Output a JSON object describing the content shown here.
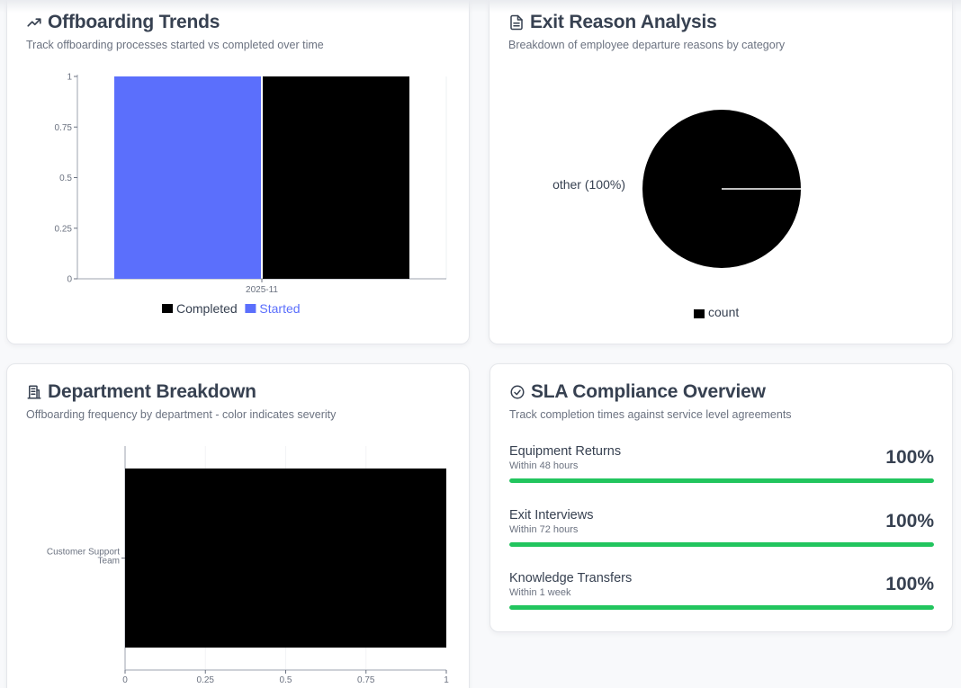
{
  "cards": {
    "trends": {
      "title": "Offboarding Trends",
      "subtitle": "Track offboarding processes started vs completed over time",
      "icon": "trending-up-icon"
    },
    "exit": {
      "title": "Exit Reason Analysis",
      "subtitle": "Breakdown of employee departure reasons by category",
      "icon": "document-icon"
    },
    "dept": {
      "title": "Department Breakdown",
      "subtitle": "Offboarding frequency by department - color indicates severity",
      "icon": "building-icon"
    },
    "sla": {
      "title": "SLA Compliance Overview",
      "subtitle": "Track completion times against service level agreements",
      "icon": "check-circle-icon",
      "items": [
        {
          "name": "Equipment Returns",
          "target": "Within 48 hours",
          "percent_label": "100%",
          "percent": 100
        },
        {
          "name": "Exit Interviews",
          "target": "Within 72 hours",
          "percent_label": "100%",
          "percent": 100
        },
        {
          "name": "Knowledge Transfers",
          "target": "Within 1 week",
          "percent_label": "100%",
          "percent": 100
        }
      ]
    }
  },
  "chart_data": [
    {
      "type": "bar",
      "categories": [
        "2025-11"
      ],
      "series": [
        {
          "name": "Started",
          "values": [
            1
          ],
          "color": "#5b6ffc"
        },
        {
          "name": "Completed",
          "values": [
            1
          ],
          "color": "#000000"
        }
      ],
      "legend_order": [
        "Completed",
        "Started"
      ],
      "ylim": [
        0,
        1
      ],
      "yticks": [
        "0",
        "0.25",
        "0.5",
        "0.75",
        "1"
      ],
      "legend_position": "bottom"
    },
    {
      "type": "pie",
      "slices": [
        {
          "label": "other (100%)",
          "value": 100,
          "color": "#000000"
        }
      ],
      "legend": [
        "count"
      ],
      "legend_position": "bottom"
    },
    {
      "type": "bar",
      "orientation": "horizontal",
      "categories": [
        "Customer Support Team"
      ],
      "category_label_lines": [
        "Customer Support",
        "Team"
      ],
      "values": [
        1
      ],
      "color": "#000000",
      "xlim": [
        0,
        1
      ],
      "xticks": [
        "0",
        "0.25",
        "0.5",
        "0.75",
        "1"
      ]
    }
  ]
}
